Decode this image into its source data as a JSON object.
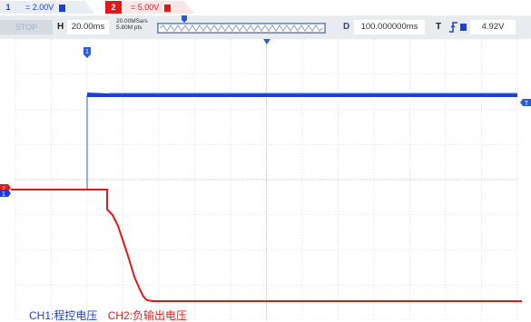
{
  "channels": {
    "ch1": {
      "number": "1",
      "scale": "= 2.00V",
      "color": "#1a3fd6"
    },
    "ch2": {
      "number": "2",
      "scale": "= 5.00V",
      "color": "#e01818"
    }
  },
  "status": {
    "run_state": "STOP",
    "h_label": "H",
    "timebase": "20.00ms",
    "sample_rate": "20.00MSa/s",
    "memory_depth": "5.80M pts",
    "d_label": "D",
    "delay": "100.000000ms",
    "t_label": "T",
    "trigger_edge": "rising-edge-icon",
    "trigger_level": "4.92V"
  },
  "markers": {
    "ch1_ground": "1",
    "ch2_ground": "2",
    "trigger_level_marker": "T"
  },
  "legend": {
    "ch1_desc": "CH1:程控电压",
    "ch2_desc": "CH2:负输出电压"
  },
  "colors": {
    "grid": "#c7c7c7",
    "background": "#ffffff",
    "status_bar": "#e9ecef"
  }
}
